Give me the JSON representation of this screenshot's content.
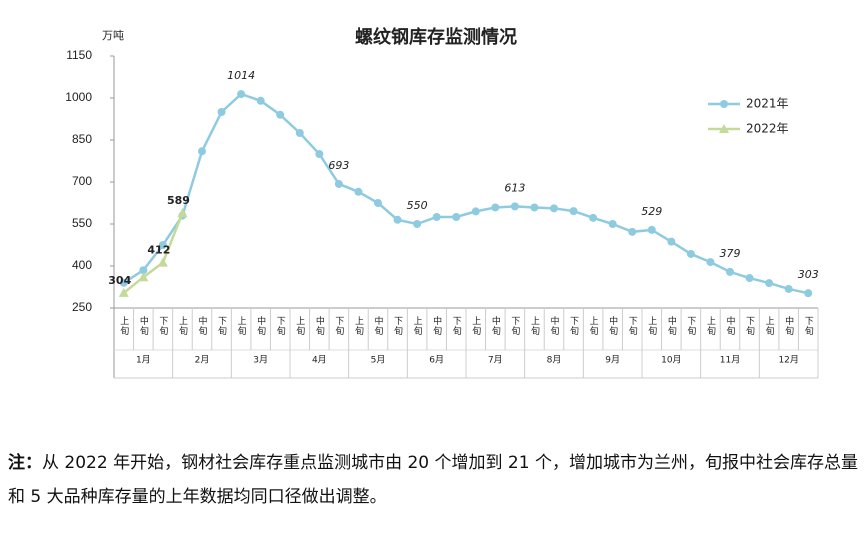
{
  "chart_data": {
    "type": "line",
    "title": "螺纹钢库存监测情况",
    "y_unit": "万吨",
    "categories": [
      "上旬",
      "中旬",
      "下旬",
      "上旬",
      "中旬",
      "下旬",
      "上旬",
      "中旬",
      "下旬",
      "上旬",
      "中旬",
      "下旬",
      "上旬",
      "中旬",
      "下旬",
      "上旬",
      "中旬",
      "下旬",
      "上旬",
      "中旬",
      "下旬",
      "上旬",
      "中旬",
      "下旬",
      "上旬",
      "中旬",
      "下旬",
      "上旬",
      "中旬",
      "下旬",
      "上旬",
      "中旬",
      "下旬",
      "上旬",
      "中旬",
      "下旬"
    ],
    "category_groups": [
      "1月",
      "2月",
      "3月",
      "4月",
      "5月",
      "6月",
      "7月",
      "8月",
      "9月",
      "10月",
      "11月",
      "12月"
    ],
    "series": [
      {
        "name": "2021年",
        "color": "#8ecbe0",
        "marker": "circle",
        "values": [
          340,
          385,
          475,
          580,
          810,
          950,
          1014,
          990,
          940,
          875,
          800,
          693,
          665,
          625,
          565,
          550,
          575,
          575,
          595,
          609,
          613,
          609,
          606,
          596,
          572,
          550,
          522,
          529,
          487,
          443,
          414,
          379,
          357,
          339,
          318,
          303
        ],
        "value_labels": [
          null,
          null,
          null,
          null,
          null,
          null,
          "1014",
          null,
          null,
          null,
          null,
          "693",
          null,
          null,
          null,
          "550",
          null,
          null,
          null,
          null,
          "613",
          null,
          null,
          null,
          null,
          null,
          null,
          "529",
          null,
          null,
          null,
          "379",
          null,
          null,
          null,
          "303"
        ]
      },
      {
        "name": "2022年",
        "color": "#c3da98",
        "marker": "triangle",
        "values": [
          304,
          360,
          412,
          589,
          null,
          null,
          null,
          null,
          null,
          null,
          null,
          null,
          null,
          null,
          null,
          null,
          null,
          null,
          null,
          null,
          null,
          null,
          null,
          null,
          null,
          null,
          null,
          null,
          null,
          null,
          null,
          null,
          null,
          null,
          null,
          null
        ],
        "value_labels": [
          "304",
          null,
          "412",
          "589",
          null,
          null,
          null,
          null,
          null,
          null,
          null,
          null,
          null,
          null,
          null,
          null,
          null,
          null,
          null,
          null,
          null,
          null,
          null,
          null,
          null,
          null,
          null,
          null,
          null,
          null,
          null,
          null,
          null,
          null,
          null,
          null
        ]
      }
    ],
    "ylim": [
      250,
      1150
    ],
    "yticks": [
      250,
      400,
      550,
      700,
      850,
      1000,
      1150
    ],
    "legend": "upper-right"
  },
  "note": {
    "label": "注：",
    "text": "从 2022 年开始，钢材社会库存重点监测城市由 20 个增加到 21 个，增加城市为兰州，旬报中社会库存总量和 5 大品种库存量的上年数据均同口径做出调整。"
  }
}
